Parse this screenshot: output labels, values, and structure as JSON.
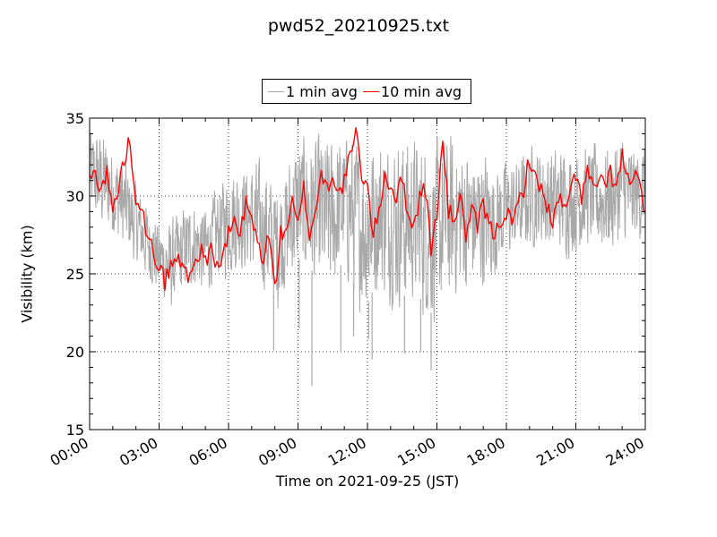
{
  "chart_data": {
    "type": "line",
    "title": "pwd52_20210925.txt",
    "xlabel": "Time on 2021-09-25 (JST)",
    "ylabel": "Visibility (km)",
    "xlim": [
      "00:00",
      "24:00"
    ],
    "ylim": [
      15,
      35
    ],
    "x_ticks": [
      "00:00",
      "03:00",
      "06:00",
      "09:00",
      "12:00",
      "15:00",
      "18:00",
      "21:00",
      "24:00"
    ],
    "y_ticks": [
      15,
      20,
      25,
      30,
      35
    ],
    "grid": true,
    "legend_position": "above-plot-center",
    "series": [
      {
        "name": "1 min avg",
        "color": "#a9a9a9",
        "x_unit": "hours",
        "x": [
          0,
          0.5,
          1,
          1.5,
          2,
          2.5,
          3,
          3.5,
          4,
          4.5,
          5,
          5.5,
          6,
          6.5,
          7,
          7.5,
          8,
          8.5,
          9,
          9.5,
          10,
          10.5,
          11,
          11.5,
          12,
          12.5,
          13,
          13.5,
          14,
          14.5,
          15,
          15.5,
          16,
          16.5,
          17,
          17.5,
          18,
          18.5,
          19,
          19.5,
          20,
          20.5,
          21,
          21.5,
          22,
          22.5,
          23,
          23.5,
          24
        ],
        "low": [
          28,
          27,
          26.5,
          26,
          25,
          24,
          23,
          22,
          23,
          23.5,
          23,
          24,
          24,
          24.5,
          24,
          23,
          21.5,
          23,
          24,
          23.5,
          22,
          22.5,
          24,
          22,
          21,
          23,
          22,
          21.5,
          22,
          21,
          20,
          22,
          22.5,
          23,
          23,
          24,
          25,
          25.5,
          26,
          26,
          25.5,
          25.5,
          25.5,
          26,
          25.5,
          25.5,
          26,
          26,
          27
        ],
        "high": [
          35,
          35,
          34,
          33,
          31.5,
          30,
          29,
          29,
          30,
          30.5,
          30,
          31,
          33,
          33,
          33,
          33,
          32,
          33,
          35,
          35,
          35,
          35,
          35,
          35,
          35,
          35,
          35,
          35,
          35,
          35,
          35,
          35,
          35,
          34,
          34,
          33,
          33,
          33,
          34,
          34,
          34,
          34,
          34,
          34,
          34,
          34,
          35,
          34,
          34
        ],
        "dips": [
          [
            7.95,
            20.1
          ],
          [
            9.6,
            17.8
          ],
          [
            10.85,
            20.0
          ],
          [
            12.05,
            20.8
          ],
          [
            12.2,
            19.5
          ],
          [
            13.6,
            19.9
          ],
          [
            14.3,
            20.0
          ],
          [
            14.75,
            18.8
          ],
          [
            9.05,
            21.5
          ],
          [
            11.4,
            21.0
          ]
        ]
      },
      {
        "name": "10 min avg",
        "color": "#ff0000",
        "x_unit": "hours",
        "x": [
          0,
          0.25,
          0.5,
          0.75,
          1,
          1.25,
          1.5,
          1.75,
          2,
          2.25,
          2.5,
          2.75,
          3,
          3.25,
          3.5,
          3.75,
          4,
          4.25,
          4.5,
          4.75,
          5,
          5.25,
          5.5,
          5.75,
          6,
          6.25,
          6.5,
          6.75,
          7,
          7.25,
          7.5,
          7.75,
          8,
          8.25,
          8.5,
          8.75,
          9,
          9.25,
          9.5,
          9.75,
          10,
          10.25,
          10.5,
          10.75,
          11,
          11.25,
          11.5,
          11.75,
          12,
          12.25,
          12.5,
          12.75,
          13,
          13.25,
          13.5,
          13.75,
          14,
          14.25,
          14.5,
          14.75,
          15,
          15.25,
          15.5,
          15.75,
          16,
          16.25,
          16.5,
          16.75,
          17,
          17.25,
          17.5,
          17.75,
          18,
          18.25,
          18.5,
          18.75,
          19,
          19.25,
          19.5,
          19.75,
          20,
          20.25,
          20.5,
          20.75,
          21,
          21.25,
          21.5,
          21.75,
          22,
          22.25,
          22.5,
          22.75,
          23,
          23.25,
          23.5,
          23.75,
          24
        ],
        "values": [
          31,
          31.5,
          30.5,
          31.5,
          29,
          30.5,
          32.5,
          33.5,
          30,
          29.5,
          27,
          26.5,
          25.5,
          24.5,
          25.5,
          26,
          25.5,
          25,
          25.5,
          26.5,
          26,
          26.5,
          25.5,
          26,
          27.5,
          28.5,
          27.5,
          29.5,
          28.5,
          27,
          26,
          27.5,
          24,
          27.5,
          28,
          29.5,
          28,
          30.5,
          27.5,
          29,
          31.5,
          30.5,
          31.5,
          30,
          31,
          32.5,
          34,
          31.5,
          30.5,
          27.5,
          29,
          31.5,
          30.5,
          30,
          31,
          29,
          28,
          30,
          30.5,
          26.5,
          29,
          33.5,
          29,
          28.5,
          30,
          27.5,
          29,
          28,
          29.5,
          28,
          27.5,
          28.5,
          29,
          28,
          29.5,
          30.5,
          32.5,
          31,
          30.5,
          29.5,
          28,
          30,
          29,
          30,
          31.5,
          30,
          31.5,
          30.5,
          31,
          30.5,
          31.5,
          30.5,
          32.5,
          31,
          31.5,
          30.5,
          29
        ]
      }
    ]
  }
}
